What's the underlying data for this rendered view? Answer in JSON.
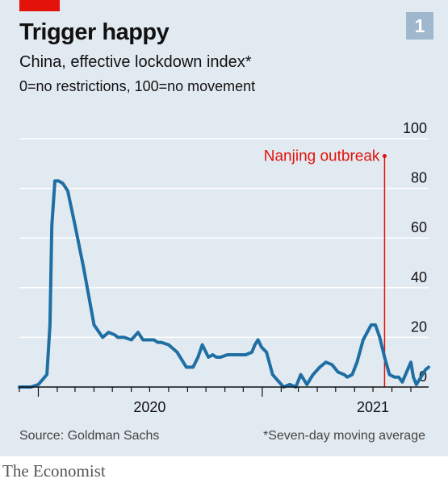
{
  "header": {
    "title": "Trigger happy",
    "subtitle": "China, effective lockdown index*",
    "scale_note": "0=no restrictions, 100=no movement",
    "chart_number": "1"
  },
  "footer": {
    "source": "Source: Goldman Sachs",
    "footnote": "*Seven-day moving average",
    "brand": "The Economist"
  },
  "colors": {
    "background": "#e2eaf1",
    "line": "#1f6fa5",
    "accent": "#e3120b",
    "grid": "#ffffff"
  },
  "chart_data": {
    "type": "line",
    "ylim": [
      0,
      100
    ],
    "y_ticks": [
      0,
      20,
      40,
      60,
      80,
      100
    ],
    "y_tick_labels": [
      "0",
      "20",
      "40",
      "60",
      "80",
      "100"
    ],
    "y_axis_side": "right",
    "grid": true,
    "x_range": [
      "2019-12-01",
      "2021-09-30"
    ],
    "x_tick_labels": [
      {
        "label": "2020",
        "date": "2020-07-01"
      },
      {
        "label": "2021",
        "date": "2021-07-01"
      }
    ],
    "x_year_ticks": [
      "2020-01-01",
      "2021-01-01"
    ],
    "series": [
      {
        "x": [
          "2019-12-01",
          "2019-12-20",
          "2020-01-01",
          "2020-01-15",
          "2020-01-20",
          "2020-01-23",
          "2020-01-28",
          "2020-02-03",
          "2020-02-10",
          "2020-02-18",
          "2020-03-01",
          "2020-03-15",
          "2020-04-01",
          "2020-04-15",
          "2020-04-25",
          "2020-05-05",
          "2020-05-10",
          "2020-05-20",
          "2020-06-01",
          "2020-06-12",
          "2020-06-20",
          "2020-07-01",
          "2020-07-08",
          "2020-07-14",
          "2020-07-20",
          "2020-08-01",
          "2020-08-15",
          "2020-08-30",
          "2020-09-10",
          "2020-09-18",
          "2020-09-25",
          "2020-10-05",
          "2020-10-12",
          "2020-10-18",
          "2020-10-25",
          "2020-11-05",
          "2020-11-15",
          "2020-11-25",
          "2020-12-05",
          "2020-12-15",
          "2020-12-20",
          "2020-12-25",
          "2020-12-31",
          "2021-01-08",
          "2021-01-18",
          "2021-01-25",
          "2021-02-05",
          "2021-02-15",
          "2021-02-25",
          "2021-03-05",
          "2021-03-15",
          "2021-03-25",
          "2021-04-05",
          "2021-04-15",
          "2021-04-25",
          "2021-05-05",
          "2021-05-15",
          "2021-05-20",
          "2021-05-28",
          "2021-06-05",
          "2021-06-15",
          "2021-06-28",
          "2021-07-05",
          "2021-07-12",
          "2021-07-20",
          "2021-07-28",
          "2021-08-05",
          "2021-08-12",
          "2021-08-18",
          "2021-08-25",
          "2021-09-01",
          "2021-09-05",
          "2021-09-10",
          "2021-09-15",
          "2021-09-20",
          "2021-09-25",
          "2021-09-30"
        ],
        "y": [
          0,
          0,
          1,
          5,
          25,
          65,
          83,
          83,
          82,
          79,
          65,
          48,
          25,
          20,
          22,
          21,
          20,
          20,
          19,
          22,
          19,
          19,
          19,
          18,
          18,
          17,
          14,
          8,
          8,
          12,
          17,
          12,
          13,
          12,
          12,
          13,
          13,
          13,
          13,
          14,
          17,
          19,
          16,
          14,
          5,
          3,
          0,
          1,
          0,
          5,
          1,
          5,
          8,
          10,
          9,
          6,
          5,
          4,
          5,
          10,
          19,
          25,
          25,
          20,
          12,
          5,
          4,
          4,
          2,
          6,
          10,
          4,
          1,
          3,
          5,
          7,
          8
        ]
      }
    ],
    "annotations": [
      {
        "label": "Nanjing outbreak",
        "x": "2021-07-20",
        "y": 93
      }
    ]
  }
}
